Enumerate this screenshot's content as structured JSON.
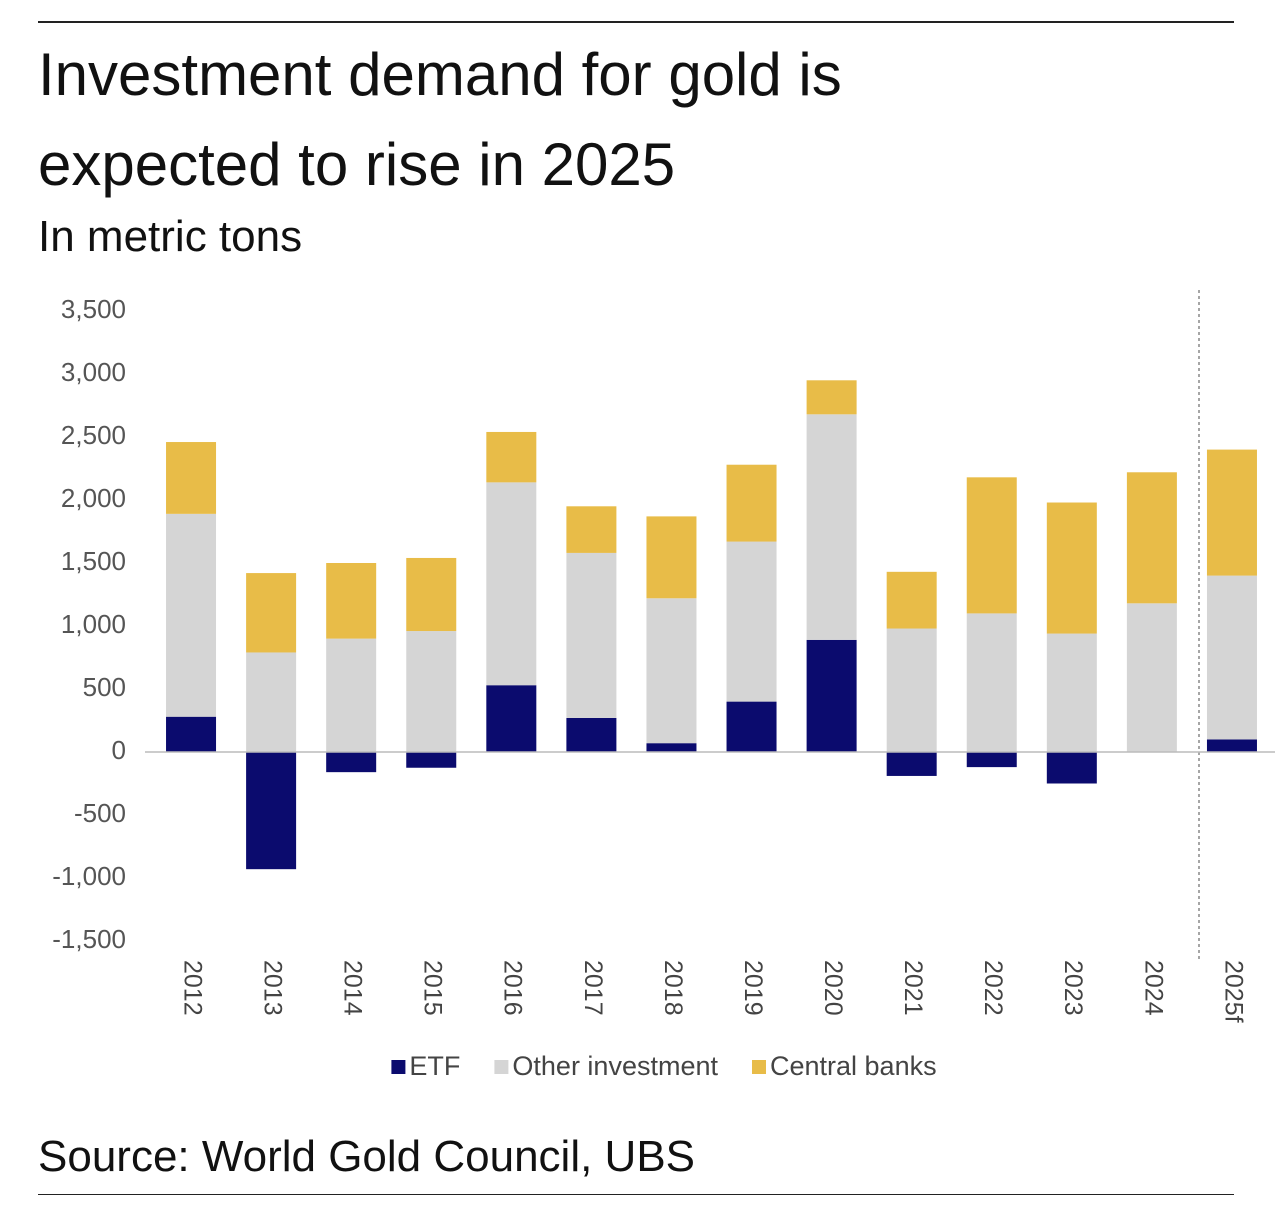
{
  "chart_data": {
    "type": "stacked_bar",
    "title": "Investment demand for gold is expected to rise in 2025",
    "subtitle": "In metric tons",
    "source": "Source: World Gold Council, UBS",
    "categories": [
      "2012",
      "2013",
      "2014",
      "2015",
      "2016",
      "2017",
      "2018",
      "2019",
      "2020",
      "2021",
      "2022",
      "2023",
      "2024",
      "2025f"
    ],
    "series": [
      {
        "name": "ETF",
        "color": "#0b0b6e",
        "values": [
          280,
          -930,
          -160,
          -125,
          530,
          270,
          70,
          400,
          890,
          -190,
          -120,
          -250,
          0,
          100
        ]
      },
      {
        "name": "Other investment",
        "color": "#d5d5d5",
        "values": [
          1610,
          790,
          900,
          960,
          1610,
          1310,
          1150,
          1270,
          1790,
          980,
          1100,
          940,
          1180,
          1300
        ]
      },
      {
        "name": "Central banks",
        "color": "#e8bc48",
        "values": [
          570,
          630,
          600,
          580,
          400,
          370,
          650,
          610,
          270,
          450,
          1080,
          1040,
          1040,
          1000
        ]
      }
    ],
    "ylim": [
      -1500,
      3500
    ],
    "yticks": [
      {
        "value": 3500,
        "label": "3,500"
      },
      {
        "value": 3000,
        "label": "3,000"
      },
      {
        "value": 2500,
        "label": "2,500"
      },
      {
        "value": 2000,
        "label": "2,000"
      },
      {
        "value": 1500,
        "label": "1,500"
      },
      {
        "value": 1000,
        "label": "1,000"
      },
      500,
      0,
      -500,
      {
        "value": -1000,
        "label": "-1,000"
      },
      {
        "value": -1500,
        "label": "-1,500"
      }
    ],
    "grid": false,
    "legend": "bottom"
  }
}
